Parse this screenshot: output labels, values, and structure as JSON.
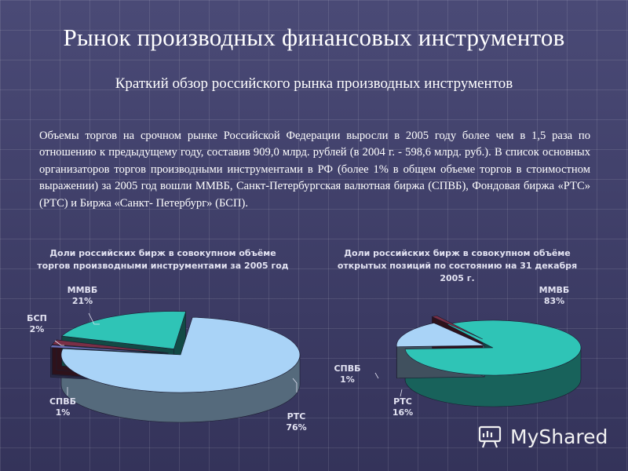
{
  "slide": {
    "title": "Рынок производных финансовых инструментов",
    "subtitle": "Краткий обзор российского рынка производных инструментов",
    "body": "Объемы торгов на срочном рынке Российской Федерации выросли в 2005 году более чем в 1,5 раза по отношению к предыдущему году, составив 909,0 млрд. рублей (в 2004 г. - 598,6 млрд. руб.). В список основных организаторов торгов производными инструментами в РФ (более 1% в общем объеме торгов в стоимостном выражении) за 2005 год вошли ММВБ, Санкт-Петербургская валютная биржа (СПВБ), Фондовая биржа «РТС» (РТС) и Биржа «Санкт- Петербург» (БСП)."
  },
  "chart_data": [
    {
      "type": "pie",
      "title_lines": [
        "Доли российских бирж в совокупном объёме",
        "торгов производными инструментами за 2005 год"
      ],
      "slices": [
        {
          "label": "РТС",
          "value": 76,
          "value_text": "76%",
          "color": "#a9d3f7"
        },
        {
          "label": "СПВБ",
          "value": 1,
          "value_text": "1%",
          "color": "#6b6fb8"
        },
        {
          "label": "БСП",
          "value": 2,
          "value_text": "2%",
          "color": "#7a2f46"
        },
        {
          "label": "ММВБ",
          "value": 21,
          "value_text": "21%",
          "color": "#2fc4b6"
        }
      ]
    },
    {
      "type": "pie",
      "title_lines": [
        "Доли российских бирж в совокупном объёме",
        "открытых позиций по состоянию на 31 декабря",
        "2005 г."
      ],
      "slices": [
        {
          "label": "ММВБ",
          "value": 83,
          "value_text": "83%",
          "color": "#2fc4b6"
        },
        {
          "label": "РТС",
          "value": 16,
          "value_text": "16%",
          "color": "#a9d3f7"
        },
        {
          "label": "СПВБ",
          "value": 1,
          "value_text": "1%",
          "color": "#7a2f46"
        }
      ]
    }
  ],
  "watermark": {
    "text": "MyShared",
    "icon": "presentation-board-icon"
  }
}
